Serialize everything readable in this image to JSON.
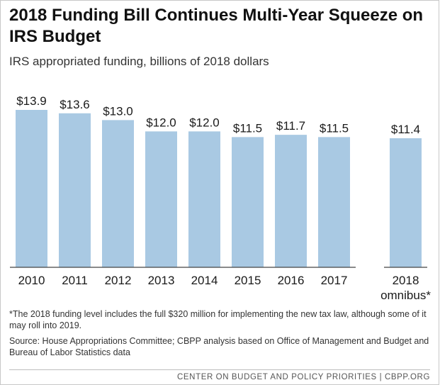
{
  "chart_data": {
    "type": "bar",
    "title": "2018 Funding Bill Continues Multi-Year Squeeze on IRS Budget",
    "subtitle": "IRS appropriated funding, billions of 2018 dollars",
    "categories": [
      "2010",
      "2011",
      "2012",
      "2013",
      "2014",
      "2015",
      "2016",
      "2017",
      "2018 omnibus*"
    ],
    "category_lines": [
      [
        "2010"
      ],
      [
        "2011"
      ],
      [
        "2012"
      ],
      [
        "2013"
      ],
      [
        "2014"
      ],
      [
        "2015"
      ],
      [
        "2016"
      ],
      [
        "2017"
      ],
      [
        "2018",
        "omnibus*"
      ]
    ],
    "values": [
      13.9,
      13.6,
      13.0,
      12.0,
      12.0,
      11.5,
      11.7,
      11.5,
      11.4
    ],
    "value_labels": [
      "$13.9",
      "$13.6",
      "$13.0",
      "$12.0",
      "$12.0",
      "$11.5",
      "$11.7",
      "$11.5",
      "$11.4"
    ],
    "bar_color": "#a9c9e3",
    "axis_color": "#444444",
    "ylim": [
      0,
      13.9
    ],
    "xlabel": "",
    "ylabel": "",
    "grid": false,
    "legend": "none"
  },
  "notes": {
    "footnote": "*The 2018 funding level includes the full $320 million for implementing the new tax law, although some of it may roll into 2019.",
    "source": "Source: House Appropriations Committee; CBPP analysis based on Office of Management and Budget and Bureau of Labor Statistics data"
  },
  "footer": "CENTER ON BUDGET AND POLICY PRIORITIES | CBPP.ORG"
}
